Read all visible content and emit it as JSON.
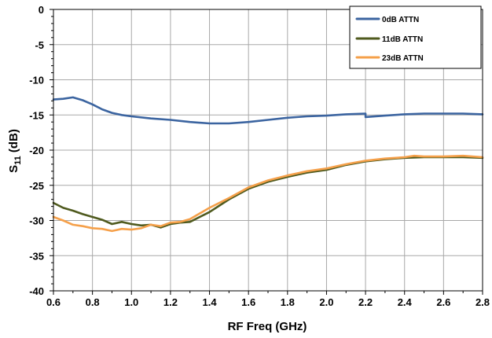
{
  "chart_data": {
    "type": "line",
    "xlabel": "RF Freq (GHz)",
    "ylabel_main": "S",
    "ylabel_sub": "11",
    "ylabel_suffix": " (dB)",
    "xlim": [
      0.6,
      2.8
    ],
    "ylim": [
      -40,
      0
    ],
    "xticks": [
      "0.6",
      "0.8",
      "1.0",
      "1.2",
      "1.4",
      "1.6",
      "1.8",
      "2.0",
      "2.2",
      "2.4",
      "2.6",
      "2.8"
    ],
    "yticks": [
      "0",
      "-5",
      "-10",
      "-15",
      "-20",
      "-25",
      "-30",
      "-35",
      "-40"
    ],
    "grid": true,
    "legend_position": "top-right",
    "series": [
      {
        "name": "0dB ATTN",
        "color": "#3b64a0",
        "x": [
          0.6,
          0.65,
          0.7,
          0.75,
          0.8,
          0.85,
          0.9,
          0.95,
          1.0,
          1.1,
          1.2,
          1.3,
          1.4,
          1.5,
          1.6,
          1.7,
          1.8,
          1.9,
          2.0,
          2.1,
          2.2,
          2.2,
          2.3,
          2.4,
          2.5,
          2.6,
          2.7,
          2.8
        ],
        "y": [
          -12.8,
          -12.7,
          -12.5,
          -12.9,
          -13.5,
          -14.2,
          -14.7,
          -15.0,
          -15.2,
          -15.5,
          -15.7,
          -16.0,
          -16.2,
          -16.2,
          -16.0,
          -15.7,
          -15.4,
          -15.2,
          -15.1,
          -14.9,
          -14.8,
          -15.3,
          -15.1,
          -14.9,
          -14.8,
          -14.8,
          -14.8,
          -14.9
        ]
      },
      {
        "name": "11dB ATTN",
        "color": "#4f5a1e",
        "x": [
          0.6,
          0.65,
          0.7,
          0.75,
          0.8,
          0.85,
          0.9,
          0.95,
          1.0,
          1.05,
          1.1,
          1.15,
          1.2,
          1.25,
          1.3,
          1.4,
          1.5,
          1.6,
          1.7,
          1.8,
          1.9,
          2.0,
          2.1,
          2.2,
          2.3,
          2.4,
          2.5,
          2.6,
          2.7,
          2.8
        ],
        "y": [
          -27.5,
          -28.2,
          -28.6,
          -29.1,
          -29.5,
          -29.9,
          -30.5,
          -30.2,
          -30.5,
          -30.7,
          -30.6,
          -31.0,
          -30.5,
          -30.3,
          -30.2,
          -28.8,
          -27.0,
          -25.5,
          -24.5,
          -23.8,
          -23.2,
          -22.8,
          -22.1,
          -21.6,
          -21.3,
          -21.1,
          -21.0,
          -21.0,
          -21.0,
          -21.1
        ]
      },
      {
        "name": "23dB ATTN",
        "color": "#f5a04a",
        "x": [
          0.6,
          0.65,
          0.7,
          0.75,
          0.8,
          0.85,
          0.9,
          0.95,
          1.0,
          1.05,
          1.1,
          1.15,
          1.2,
          1.25,
          1.3,
          1.4,
          1.5,
          1.6,
          1.7,
          1.8,
          1.9,
          2.0,
          2.1,
          2.2,
          2.3,
          2.4,
          2.45,
          2.5,
          2.6,
          2.7,
          2.8
        ],
        "y": [
          -29.5,
          -30.0,
          -30.6,
          -30.8,
          -31.1,
          -31.2,
          -31.5,
          -31.2,
          -31.3,
          -31.1,
          -30.6,
          -30.8,
          -30.3,
          -30.2,
          -29.8,
          -28.2,
          -26.8,
          -25.3,
          -24.3,
          -23.6,
          -23.0,
          -22.6,
          -22.0,
          -21.5,
          -21.2,
          -21.0,
          -20.8,
          -20.9,
          -20.9,
          -20.8,
          -21.0
        ]
      }
    ]
  }
}
